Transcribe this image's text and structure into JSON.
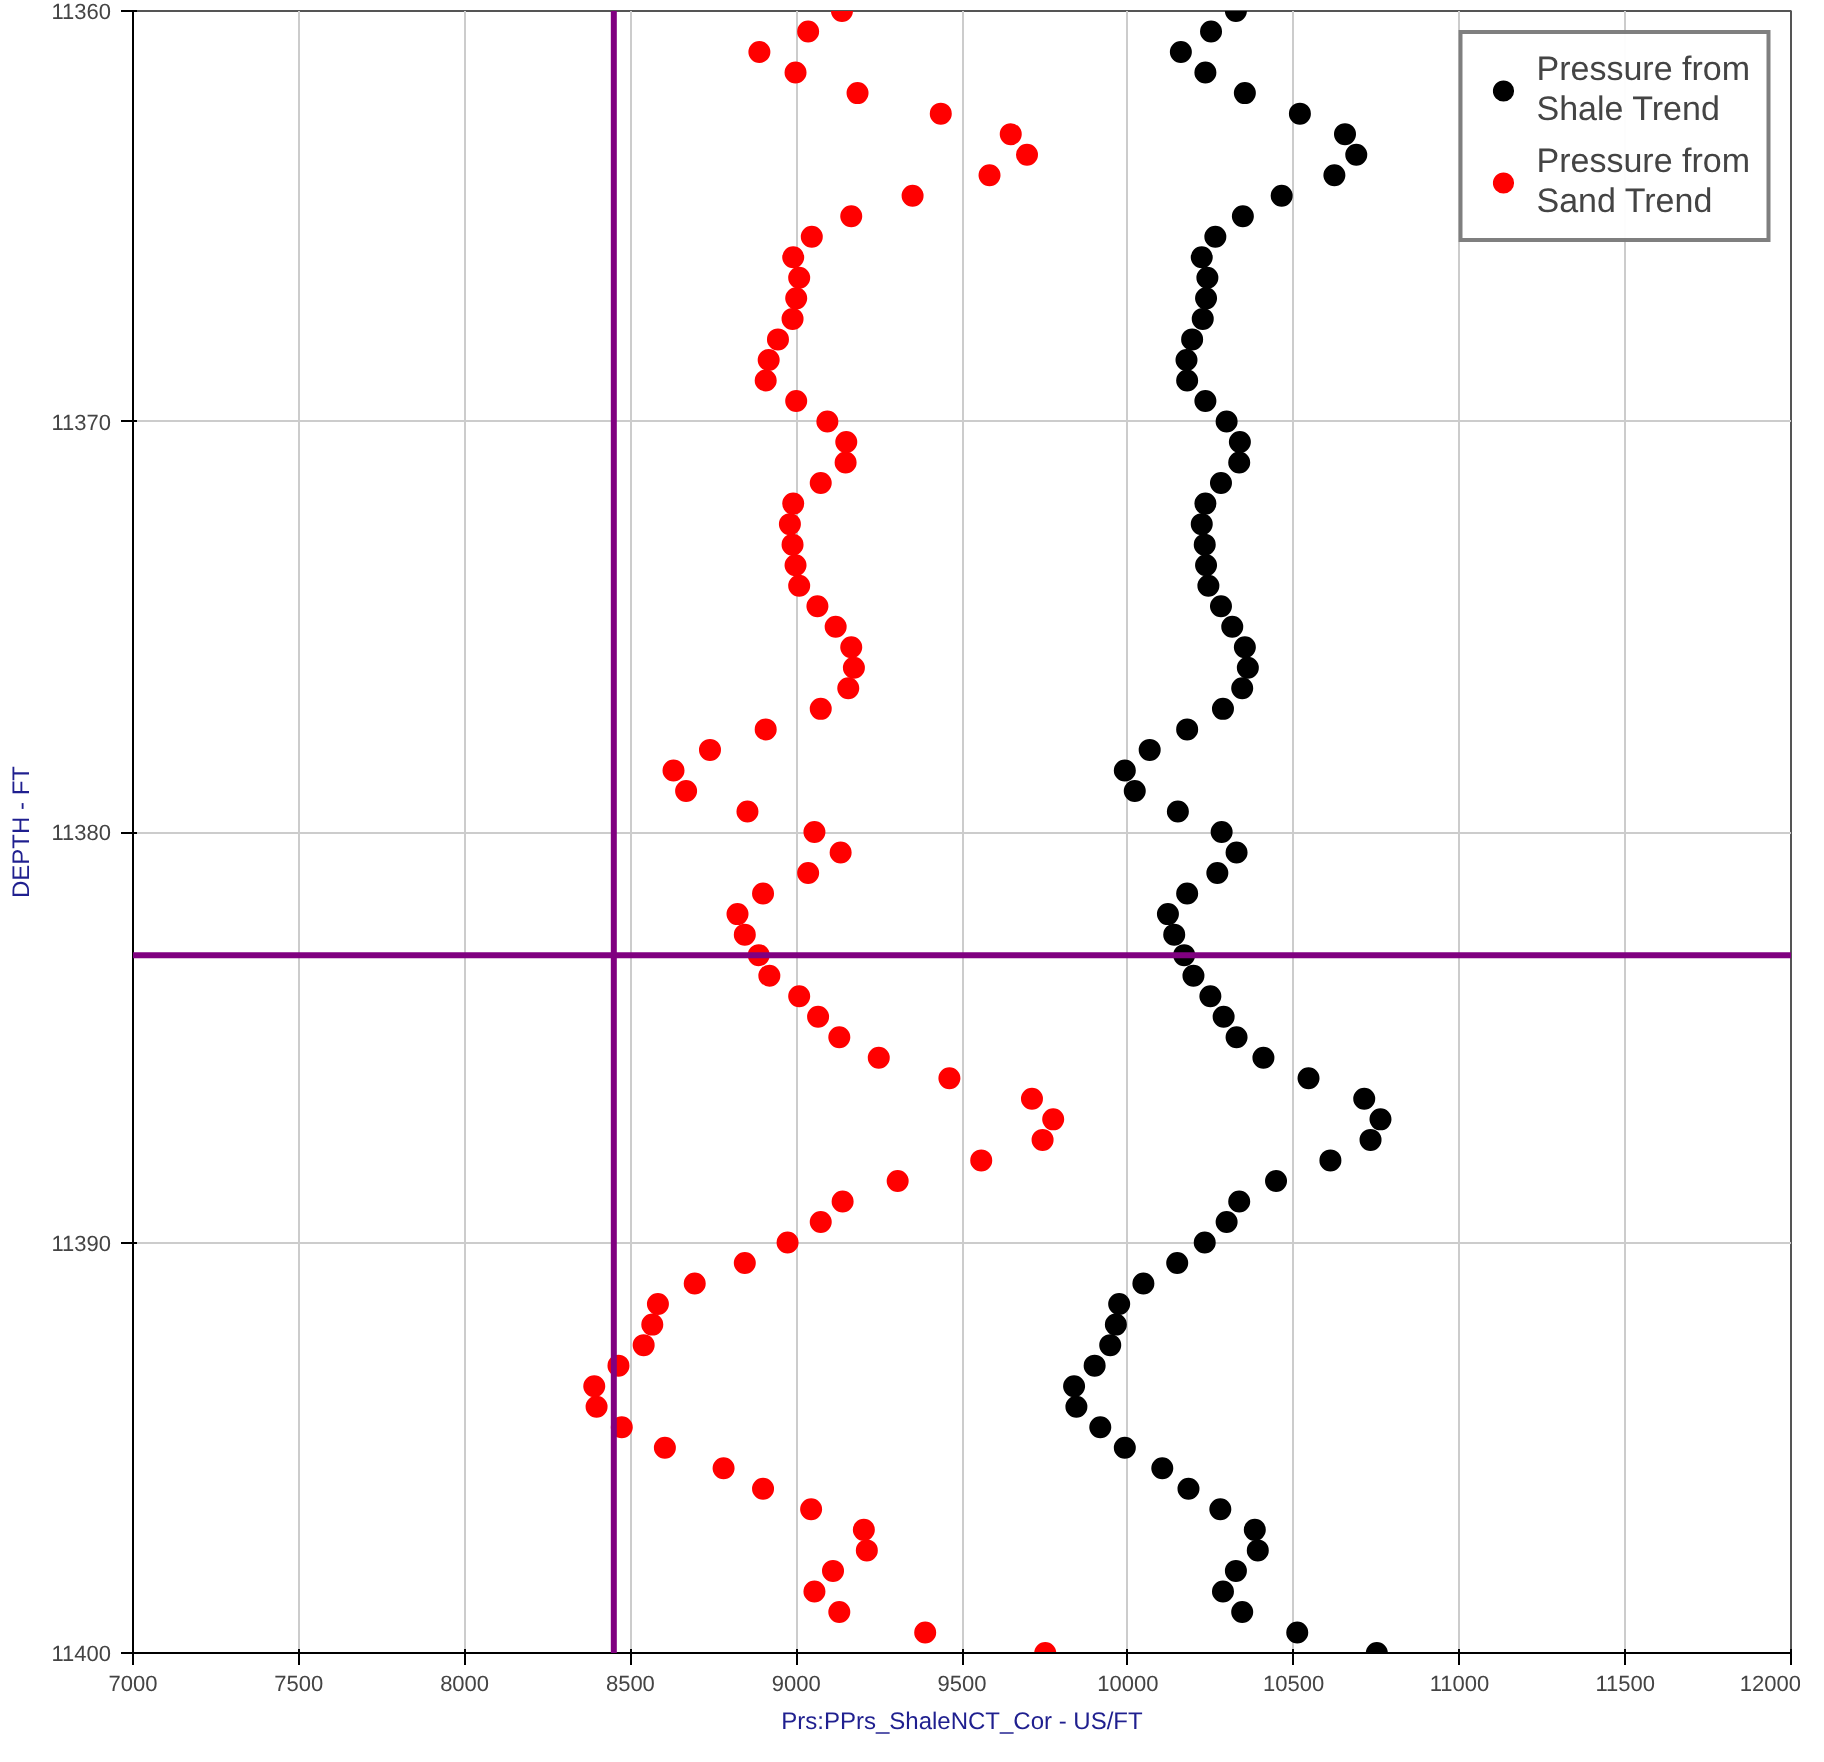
{
  "chart_data": {
    "type": "scatter",
    "xlabel": "Prs:PPrs_ShaleNCT_Cor - US/FT",
    "ylabel": "DEPTH - FT",
    "xlim": [
      7000,
      12000
    ],
    "xticks": [
      7000,
      7500,
      8000,
      8500,
      9000,
      9500,
      10000,
      10500,
      11000,
      11500,
      12000
    ],
    "ylim": [
      11400,
      11360
    ],
    "yticks": [
      11360,
      11370,
      11380,
      11390,
      11400
    ],
    "grid": true,
    "legend": "top right",
    "marker": "circle",
    "series": [
      {
        "name": "Pressure from Shale Trend",
        "color": "#000000",
        "x": [
          10326,
          10251,
          10160,
          10234,
          10353,
          10519,
          10655,
          10689,
          10623,
          10464,
          10347,
          10264,
          10223,
          10240,
          10236,
          10226,
          10194,
          10177,
          10179,
          10234,
          10298,
          10338,
          10336,
          10281,
          10234,
          10223,
          10232,
          10236,
          10243,
          10281,
          10315,
          10353,
          10362,
          10345,
          10287,
          10179,
          10066,
          9991,
          10021,
          10151,
          10283,
          10328,
          10270,
          10179,
          10121,
          10140,
          10170,
          10198,
          10249,
          10289,
          10328,
          10409,
          10545,
          10713,
          10762,
          10732,
          10611,
          10447,
          10336,
          10298,
          10232,
          10149,
          10047,
          9974,
          9964,
          9947,
          9900,
          9838,
          9845,
          9917,
          9991,
          10104,
          10183,
          10279,
          10383,
          10392,
          10326,
          10287,
          10345,
          10511,
          10751
        ],
        "values": [
          11360,
          11360.5,
          11361,
          11361.5,
          11362,
          11362.5,
          11363,
          11363.5,
          11364,
          11364.5,
          11365,
          11365.5,
          11366,
          11366.5,
          11367,
          11367.5,
          11368,
          11368.5,
          11369,
          11369.5,
          11370,
          11370.5,
          11371,
          11371.5,
          11372,
          11372.5,
          11373,
          11373.5,
          11374,
          11374.5,
          11375,
          11375.5,
          11376,
          11376.5,
          11377,
          11377.5,
          11378,
          11378.5,
          11379,
          11379.5,
          11380,
          11380.5,
          11381,
          11381.5,
          11382,
          11382.5,
          11383,
          11383.5,
          11384,
          11384.5,
          11385,
          11385.5,
          11386,
          11386.5,
          11387,
          11387.5,
          11388,
          11388.5,
          11389,
          11389.5,
          11390,
          11390.5,
          11391,
          11391.5,
          11392,
          11392.5,
          11393,
          11393.5,
          11394,
          11394.5,
          11395,
          11395.5,
          11396,
          11396.5,
          11397,
          11397.5,
          11398,
          11398.5,
          11399,
          11399.5,
          11400
        ]
      },
      {
        "name": "Pressure from Sand Trend",
        "color": "#ff0000",
        "x": [
          9138,
          9036,
          8889,
          8998,
          9185,
          9436,
          9647,
          9696,
          9583,
          9351,
          9166,
          9047,
          8991,
          9009,
          9000,
          8989,
          8945,
          8917,
          8908,
          9000,
          9094,
          9151,
          9149,
          9074,
          8991,
          8981,
          8989,
          8998,
          9009,
          9064,
          9119,
          9166,
          9174,
          9157,
          9074,
          8908,
          8740,
          8630,
          8668,
          8853,
          9055,
          9134,
          9036,
          8900,
          8823,
          8845,
          8887,
          8919,
          9009,
          9066,
          9130,
          9249,
          9462,
          9711,
          9775,
          9743,
          9558,
          9306,
          9140,
          9074,
          8974,
          8845,
          8694,
          8583,
          8566,
          8540,
          8464,
          8391,
          8398,
          8474,
          8604,
          8781,
          8900,
          9045,
          9204,
          9213,
          9111,
          9055,
          9130,
          9389,
          9751
        ],
        "values": [
          11360,
          11360.5,
          11361,
          11361.5,
          11362,
          11362.5,
          11363,
          11363.5,
          11364,
          11364.5,
          11365,
          11365.5,
          11366,
          11366.5,
          11367,
          11367.5,
          11368,
          11368.5,
          11369,
          11369.5,
          11370,
          11370.5,
          11371,
          11371.5,
          11372,
          11372.5,
          11373,
          11373.5,
          11374,
          11374.5,
          11375,
          11375.5,
          11376,
          11376.5,
          11377,
          11377.5,
          11378,
          11378.5,
          11379,
          11379.5,
          11380,
          11380.5,
          11381,
          11381.5,
          11382,
          11382.5,
          11383,
          11383.5,
          11384,
          11384.5,
          11385,
          11385.5,
          11386,
          11386.5,
          11387,
          11387.5,
          11388,
          11388.5,
          11389,
          11389.5,
          11390,
          11390.5,
          11391,
          11391.5,
          11392,
          11392.5,
          11393,
          11393.5,
          11394,
          11394.5,
          11395,
          11395.5,
          11396,
          11396.5,
          11397,
          11397.5,
          11398,
          11398.5,
          11399,
          11399.5,
          11400
        ]
      }
    ],
    "ref_lines": [
      {
        "axis": "x",
        "value": 8450,
        "color": "#800080"
      },
      {
        "axis": "y",
        "value": 11383,
        "color": "#800080"
      }
    ]
  }
}
